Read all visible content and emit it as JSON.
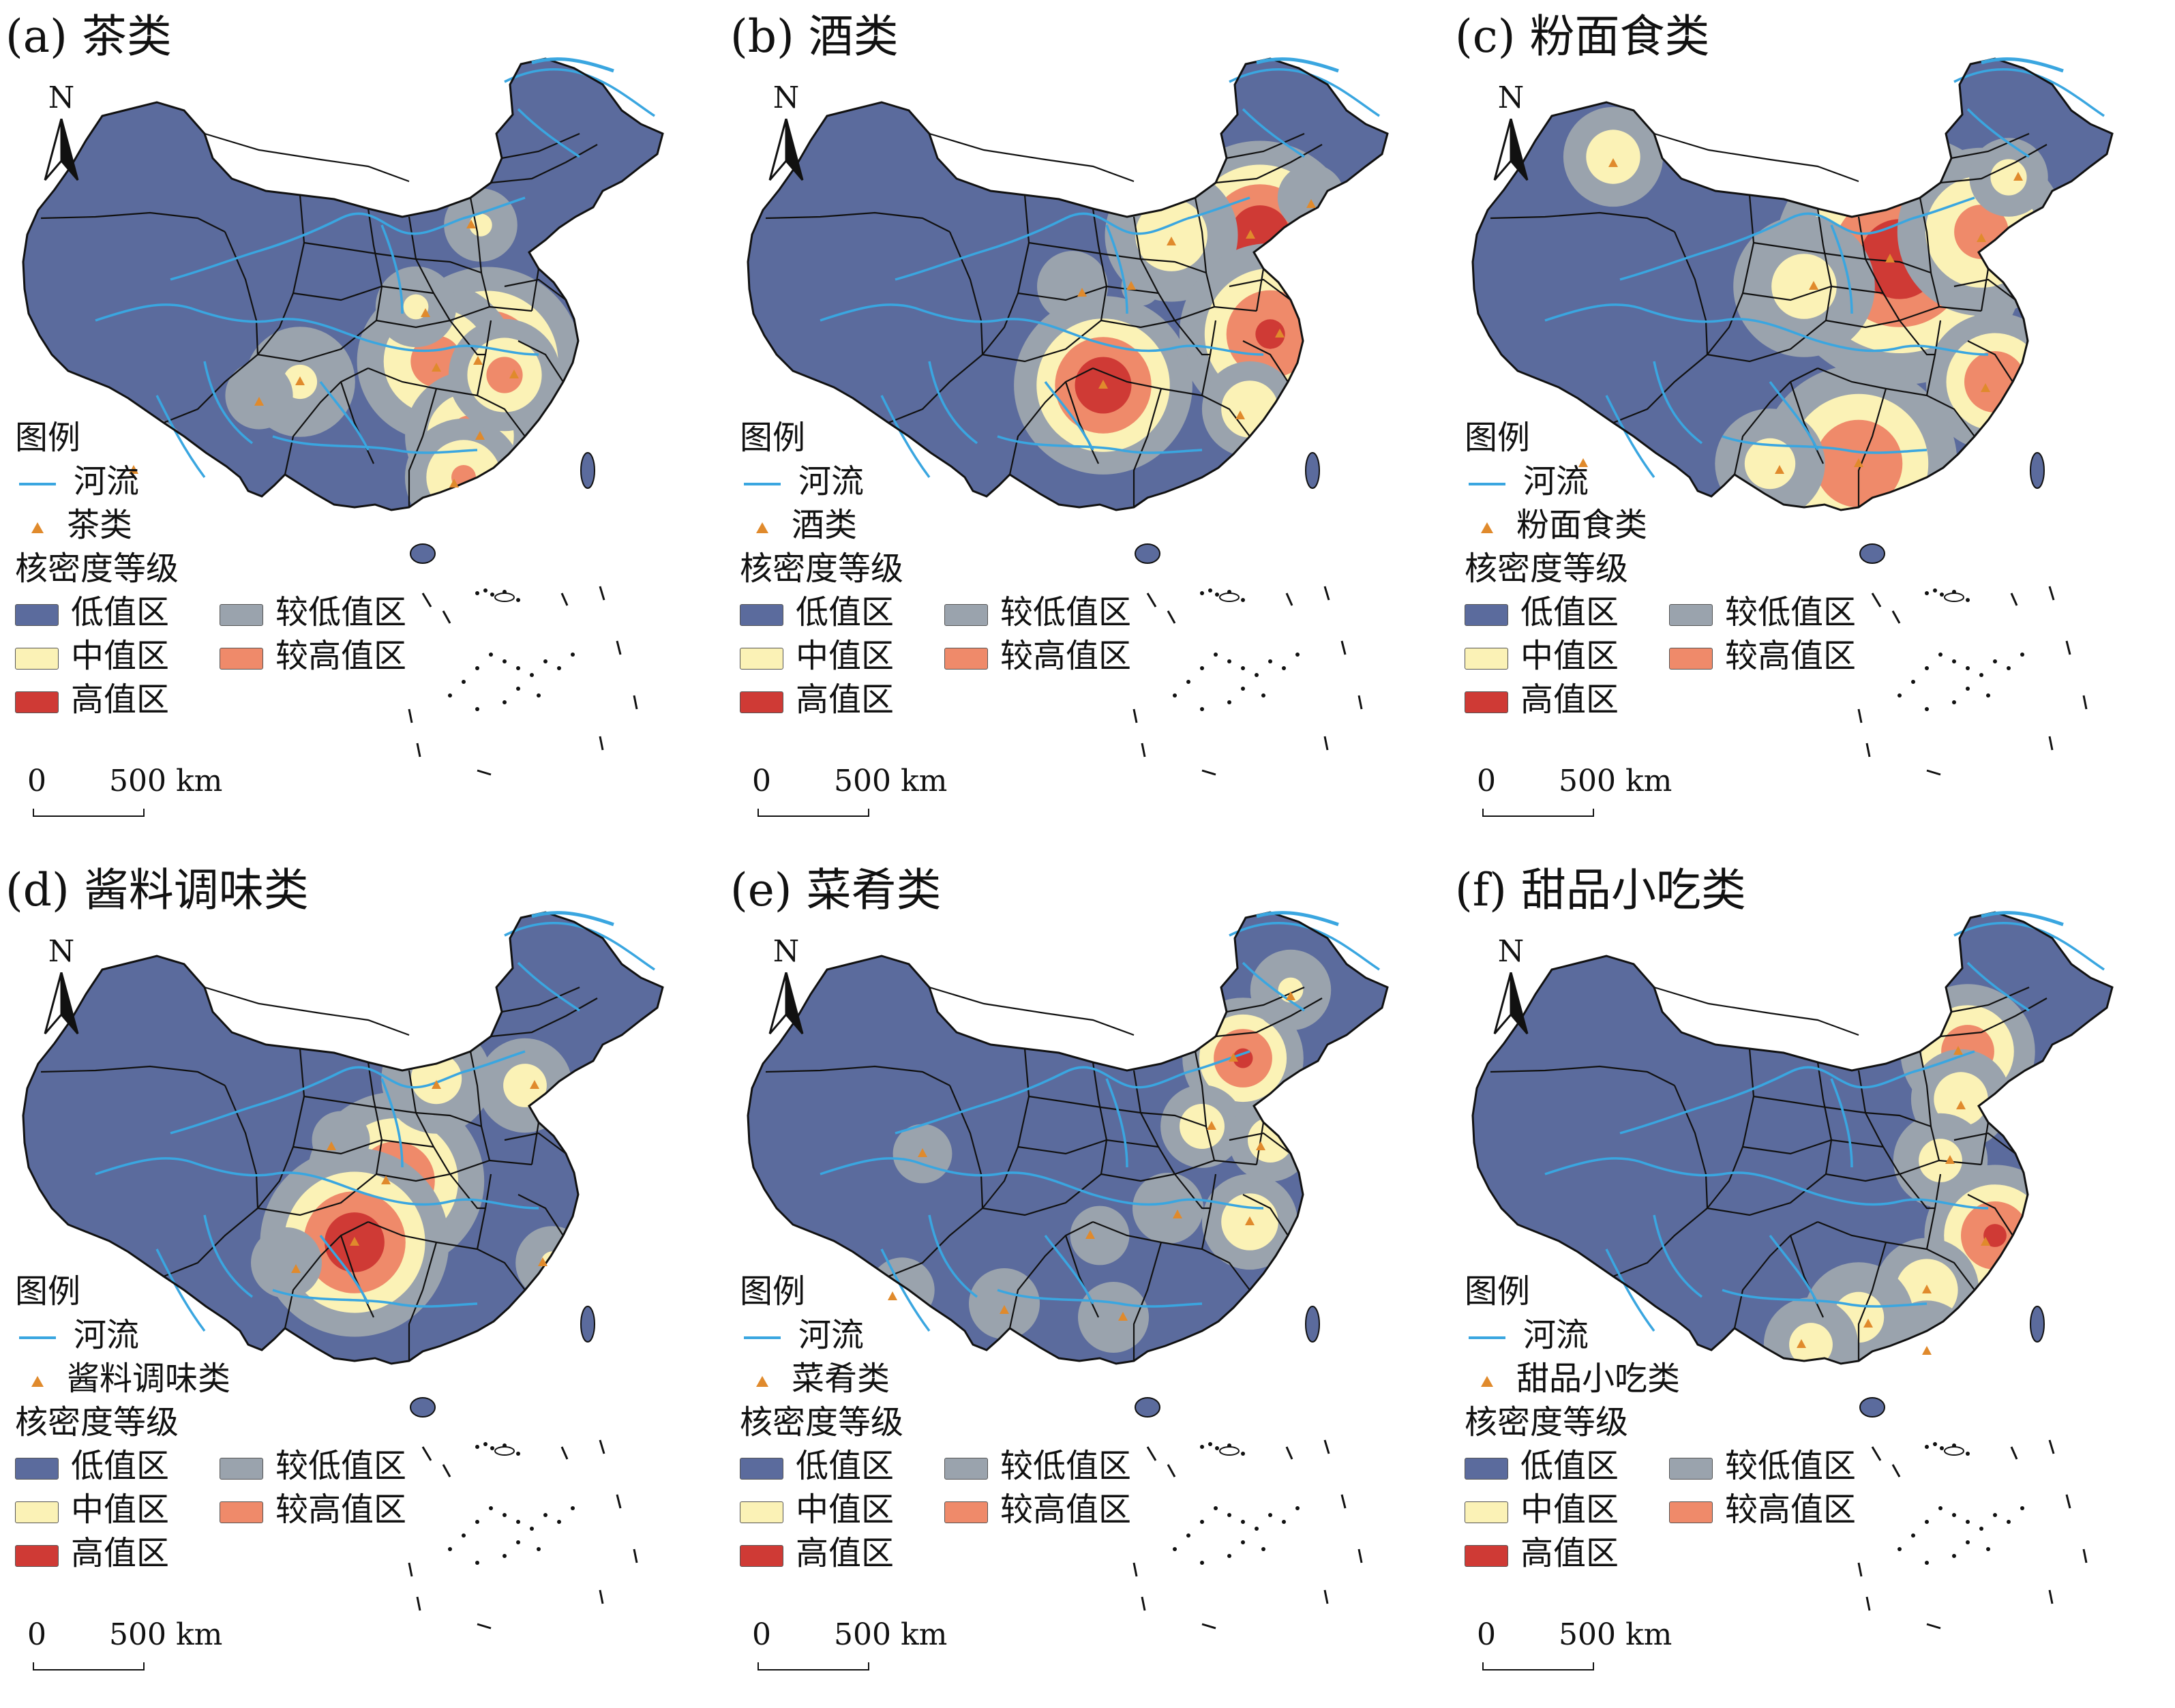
{
  "colors": {
    "low": "#5b6b9d",
    "lower": "#9aa3ad",
    "mid": "#fbf2b6",
    "higher": "#ef8a6a",
    "high": "#cf3a35",
    "river": "#3aa6e0",
    "border": "#111111",
    "point": "#e08a2c"
  },
  "legend": {
    "title": "图例",
    "river": "河流",
    "density_title": "核密度等级",
    "classes": [
      "低值区",
      "较低值区",
      "中值区",
      "较高值区",
      "高值区"
    ]
  },
  "north_label": "N",
  "scale": {
    "zero": "0",
    "label": "500 km"
  },
  "panels": [
    {
      "title": "(a) 茶类",
      "category": "茶类"
    },
    {
      "title": "(b) 酒类",
      "category": "酒类"
    },
    {
      "title": "(c) 粉面食类",
      "category": "粉面食类"
    },
    {
      "title": "(d) 酱料调味类",
      "category": "酱料调味类"
    },
    {
      "title": "(e) 菜肴类",
      "category": "菜肴类"
    },
    {
      "title": "(f) 甜品小吃类",
      "category": "甜品小吃类"
    }
  ]
}
